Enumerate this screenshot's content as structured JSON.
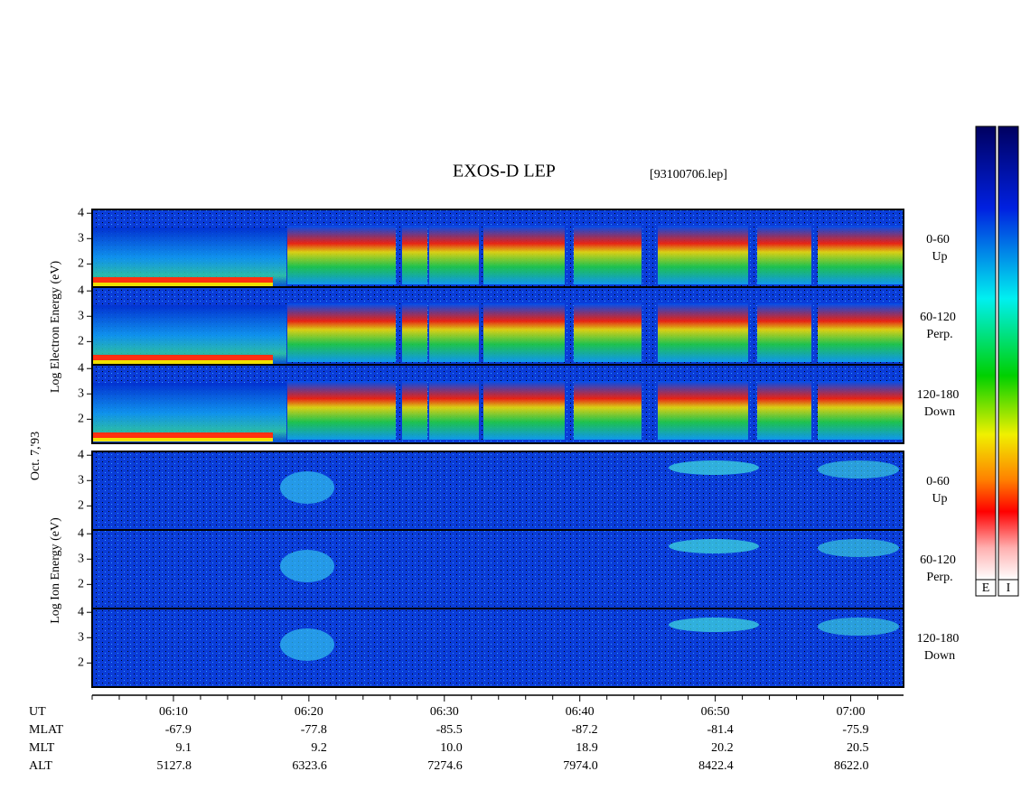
{
  "title": "EXOS-D LEP",
  "file": "[93100706.lep]",
  "date": "Oct. 7,'93",
  "electron_ylabel": "Log Electron Energy (eV)",
  "ion_ylabel": "Log Ion Energy (eV)",
  "ylim": [
    1.05,
    4.15
  ],
  "yticks": [
    2,
    3,
    4
  ],
  "panels": [
    {
      "species": "electron",
      "angle": "0-60",
      "direction": "Up"
    },
    {
      "species": "electron",
      "angle": "60-120",
      "direction": "Perp."
    },
    {
      "species": "electron",
      "angle": "120-180",
      "direction": "Down"
    },
    {
      "species": "ion",
      "angle": "0-60",
      "direction": "Up"
    },
    {
      "species": "ion",
      "angle": "60-120",
      "direction": "Perp."
    },
    {
      "species": "ion",
      "angle": "120-180",
      "direction": "Down"
    }
  ],
  "xlim": [
    364,
    423.9
  ],
  "xticks": [
    {
      "value": 370,
      "label": "06:10"
    },
    {
      "value": 380,
      "label": "06:20"
    },
    {
      "value": 390,
      "label": "06:30"
    },
    {
      "value": 400,
      "label": "06:40"
    },
    {
      "value": 410,
      "label": "06:50"
    },
    {
      "value": 420,
      "label": "07:00"
    }
  ],
  "xminorticks": [
    364,
    366,
    368,
    372,
    374,
    376,
    378,
    382,
    384,
    386,
    388,
    392,
    394,
    396,
    398,
    402,
    404,
    406,
    408,
    412,
    414,
    416,
    418,
    422
  ],
  "rows": [
    {
      "name": "UT"
    },
    {
      "name": "MLAT",
      "values": [
        "-67.9",
        "-77.8",
        "-85.5",
        "-87.2",
        "-81.4",
        "-75.9"
      ]
    },
    {
      "name": "MLT",
      "values": [
        "9.1",
        "9.2",
        "10.0",
        "18.9",
        "20.2",
        "20.5"
      ]
    },
    {
      "name": "ALT",
      "values": [
        "5127.8",
        "6323.6",
        "7274.6",
        "7974.0",
        "8422.4",
        "8622.0"
      ]
    }
  ],
  "colorbar_labels": [
    "E",
    "I"
  ]
}
